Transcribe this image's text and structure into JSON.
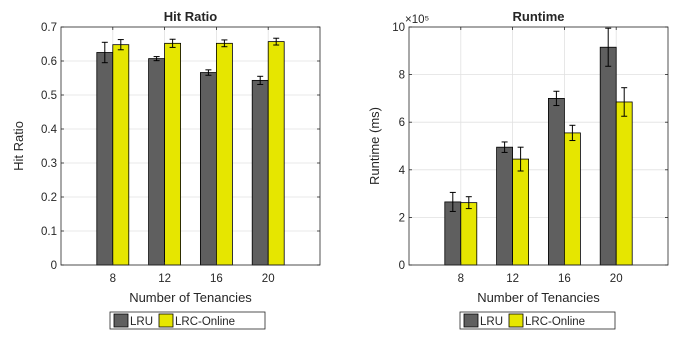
{
  "chart_data": [
    {
      "type": "bar",
      "title": "Hit Ratio",
      "xlabel": "Number of Tenancies",
      "ylabel": "Hit Ratio",
      "categories": [
        "8",
        "12",
        "16",
        "20"
      ],
      "ylim": [
        0,
        0.7
      ],
      "yticks": [
        "0",
        "0.1",
        "0.2",
        "0.3",
        "0.4",
        "0.5",
        "0.6",
        "0.7"
      ],
      "ytick_values": [
        0,
        0.1,
        0.2,
        0.3,
        0.4,
        0.5,
        0.6,
        0.7
      ],
      "scale_label": "",
      "grid": true,
      "legend_position": "bottom",
      "series": [
        {
          "name": "LRU",
          "color": "#5f5f5f",
          "values": [
            0.625,
            0.607,
            0.566,
            0.543
          ],
          "errors": [
            0.03,
            0.006,
            0.008,
            0.012
          ]
        },
        {
          "name": "LRC-Online",
          "color": "#e6e600",
          "values": [
            0.648,
            0.652,
            0.652,
            0.657
          ],
          "errors": [
            0.015,
            0.012,
            0.01,
            0.01
          ]
        }
      ]
    },
    {
      "type": "bar",
      "title": "Runtime",
      "xlabel": "Number of Tenancies",
      "ylabel": "Runtime (ms)",
      "categories": [
        "8",
        "12",
        "16",
        "20"
      ],
      "ylim": [
        0,
        10
      ],
      "yticks": [
        "0",
        "2",
        "4",
        "6",
        "8",
        "10"
      ],
      "ytick_values": [
        0,
        2,
        4,
        6,
        8,
        10
      ],
      "scale_label": "×10⁵",
      "grid": true,
      "legend_position": "bottom",
      "series": [
        {
          "name": "LRU",
          "color": "#5f5f5f",
          "values": [
            2.65,
            4.95,
            7.0,
            9.15
          ],
          "errors": [
            0.4,
            0.22,
            0.3,
            0.8
          ]
        },
        {
          "name": "LRC-Online",
          "color": "#e6e600",
          "values": [
            2.62,
            4.45,
            5.55,
            6.85
          ],
          "errors": [
            0.25,
            0.5,
            0.32,
            0.6
          ]
        }
      ]
    }
  ]
}
